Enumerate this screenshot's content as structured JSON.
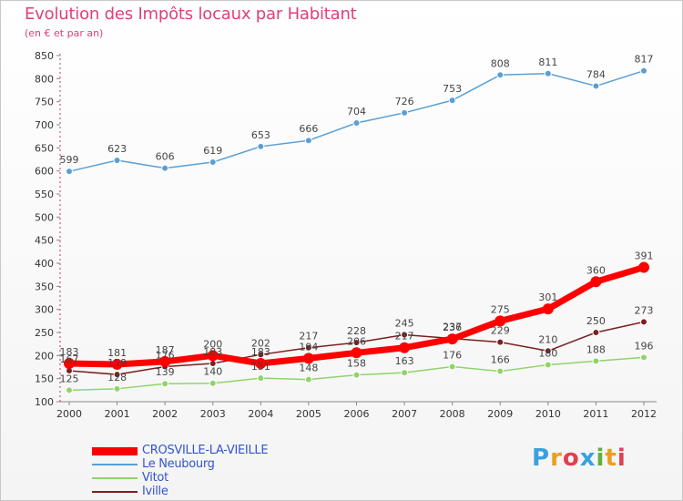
{
  "header": {
    "title": "Evolution des Impôts locaux par Habitant",
    "subtitle": "(en € et par an)"
  },
  "logo": {
    "text": "Proxiti",
    "colors": [
      "#3aa0e0",
      "#e8a020",
      "#e04050",
      "#3aa0e0",
      "#60b040",
      "#e8a020",
      "#e04050"
    ]
  },
  "chart_data": {
    "type": "line",
    "x": [
      "2000",
      "2001",
      "2002",
      "2003",
      "2004",
      "2005",
      "2006",
      "2007",
      "2008",
      "2009",
      "2010",
      "2011",
      "2012"
    ],
    "ylim": [
      100,
      850
    ],
    "yticks": [
      "100",
      "150",
      "200",
      "250",
      "300",
      "350",
      "400",
      "450",
      "500",
      "550",
      "600",
      "650",
      "700",
      "750",
      "800",
      "850"
    ],
    "grid": false,
    "legend_position": "bottom-left",
    "series": [
      {
        "name": "CROSVILLE-LA-VIEILLE",
        "color": "#ff0000",
        "values": [
          183,
          181,
          187,
          200,
          183,
          194,
          206,
          217,
          236,
          275,
          301,
          360,
          391
        ],
        "labels": [
          "183",
          "181",
          "187",
          "200",
          "183",
          "194",
          "206",
          "217",
          "236",
          "275",
          "301",
          "360",
          "391"
        ]
      },
      {
        "name": "Le Neubourg",
        "color": "#5a9fd4",
        "values": [
          599,
          623,
          606,
          619,
          653,
          666,
          704,
          726,
          753,
          808,
          811,
          784,
          817
        ],
        "labels": [
          "599",
          "623",
          "606",
          "619",
          "653",
          "666",
          "704",
          "726",
          "753",
          "808",
          "811",
          "784",
          "817"
        ]
      },
      {
        "name": "Vitot",
        "color": "#8fd46a",
        "values": [
          125,
          128,
          139,
          140,
          151,
          148,
          158,
          163,
          176,
          166,
          180,
          188,
          196
        ],
        "labels": [
          "125",
          "128",
          "139",
          "140",
          "151",
          "148",
          "158",
          "163",
          "176",
          "166",
          "180",
          "188",
          "196"
        ]
      },
      {
        "name": "Iville",
        "color": "#7a2020",
        "values": [
          167,
          159,
          176,
          183,
          202,
          217,
          228,
          245,
          237,
          229,
          210,
          250,
          273
        ],
        "labels": [
          "167",
          "159",
          "176",
          "183",
          "202",
          "217",
          "228",
          "245",
          "237",
          "229",
          "210",
          "250",
          "273"
        ]
      }
    ]
  }
}
